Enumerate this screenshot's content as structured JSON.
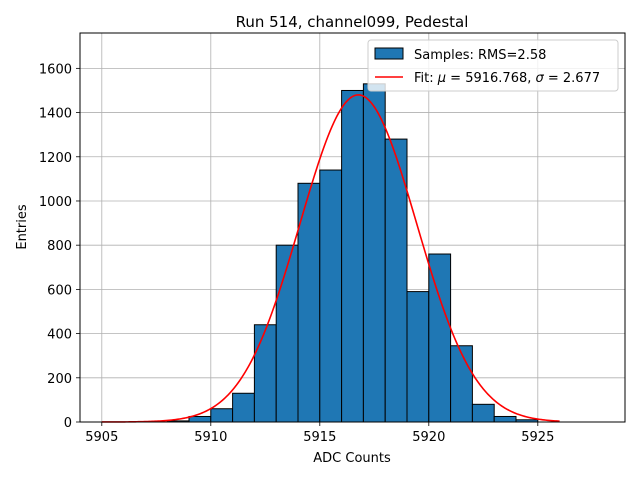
{
  "chart_data": {
    "type": "bar",
    "title": "Run 514, channel099, Pedestal",
    "xlabel": "ADC Counts",
    "ylabel": "Entries",
    "xlim": [
      5904,
      5929
    ],
    "ylim": [
      0,
      1760
    ],
    "xticks": [
      5905,
      5910,
      5915,
      5920,
      5925
    ],
    "yticks": [
      0,
      200,
      400,
      600,
      800,
      1000,
      1200,
      1400,
      1600
    ],
    "grid": true,
    "legend_position": "top-right",
    "colors": {
      "bars": "#1f77b4",
      "bar_edge": "#000000",
      "fit": "#ff0000",
      "grid": "#b0b0b0"
    },
    "series": [
      {
        "name": "Samples: RMS=2.58",
        "kind": "histogram",
        "bin_width": 1,
        "bins": [
          {
            "x": 5908,
            "count": 5
          },
          {
            "x": 5909,
            "count": 25
          },
          {
            "x": 5910,
            "count": 60
          },
          {
            "x": 5911,
            "count": 130
          },
          {
            "x": 5912,
            "count": 440
          },
          {
            "x": 5913,
            "count": 800
          },
          {
            "x": 5914,
            "count": 1080
          },
          {
            "x": 5915,
            "count": 1140
          },
          {
            "x": 5916,
            "count": 1500
          },
          {
            "x": 5917,
            "count": 1530
          },
          {
            "x": 5918,
            "count": 1280
          },
          {
            "x": 5919,
            "count": 590
          },
          {
            "x": 5920,
            "count": 760
          },
          {
            "x": 5921,
            "count": 345
          },
          {
            "x": 5922,
            "count": 80
          },
          {
            "x": 5923,
            "count": 25
          },
          {
            "x": 5924,
            "count": 10
          }
        ]
      },
      {
        "name": "Fit: $\\mu$ = 5916.768, $\\sigma$ = 2.677",
        "kind": "gaussian-fit",
        "mu": 5916.768,
        "sigma": 2.677,
        "amplitude": 1480,
        "x_range": [
          5905,
          5926
        ]
      }
    ],
    "legend": {
      "samples_label": "Samples: RMS=2.58",
      "fit_prefix": "Fit: ",
      "fit_mu_symbol": "μ",
      "fit_mu_value": " = 5916.768, ",
      "fit_sigma_symbol": "σ",
      "fit_sigma_value": " = 2.677"
    }
  }
}
